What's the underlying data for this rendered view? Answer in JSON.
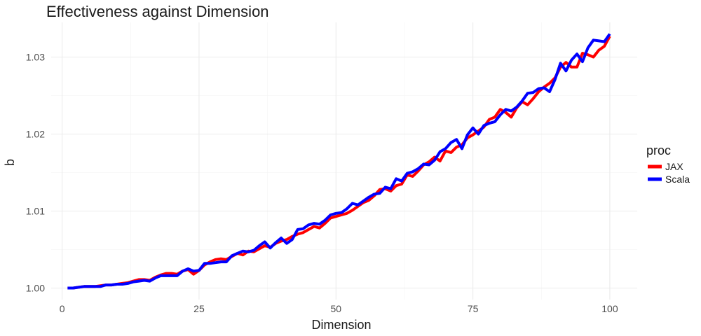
{
  "chart_data": {
    "type": "line",
    "title": "Effectiveness against Dimension",
    "xlabel": "Dimension",
    "ylabel": "b",
    "xlim": [
      -2,
      105
    ],
    "ylim": [
      0.9985,
      1.0345
    ],
    "x_ticks": [
      0,
      25,
      50,
      75,
      100
    ],
    "x_tick_labels": [
      "0",
      "25",
      "50",
      "75",
      "100"
    ],
    "y_ticks": [
      1.0,
      1.01,
      1.02,
      1.03
    ],
    "y_tick_labels": [
      "1.00",
      "1.01",
      "1.02",
      "1.03"
    ],
    "grid": true,
    "legend": {
      "title": "proc",
      "position": "right"
    },
    "x": [
      1,
      2,
      3,
      4,
      5,
      6,
      7,
      8,
      9,
      10,
      11,
      12,
      13,
      14,
      15,
      16,
      17,
      18,
      19,
      20,
      21,
      22,
      23,
      24,
      25,
      26,
      27,
      28,
      29,
      30,
      31,
      32,
      33,
      34,
      35,
      36,
      37,
      38,
      39,
      40,
      41,
      42,
      43,
      44,
      45,
      46,
      47,
      48,
      49,
      50,
      51,
      52,
      53,
      54,
      55,
      56,
      57,
      58,
      59,
      60,
      61,
      62,
      63,
      64,
      65,
      66,
      67,
      68,
      69,
      70,
      71,
      72,
      73,
      74,
      75,
      76,
      77,
      78,
      79,
      80,
      81,
      82,
      83,
      84,
      85,
      86,
      87,
      88,
      89,
      90,
      91,
      92,
      93,
      94,
      95,
      96,
      97,
      98,
      99,
      100
    ],
    "series": [
      {
        "name": "JAX",
        "color": "#ff0000",
        "values": [
          1.0,
          1.0,
          1.0001,
          1.0002,
          1.0002,
          1.0002,
          1.0003,
          1.0004,
          1.0004,
          1.0005,
          1.0006,
          1.0007,
          1.0009,
          1.0011,
          1.0011,
          1.001,
          1.0014,
          1.0017,
          1.0019,
          1.0019,
          1.0018,
          1.0022,
          1.0024,
          1.0018,
          1.0023,
          1.003,
          1.0034,
          1.0037,
          1.0038,
          1.0037,
          1.0041,
          1.0045,
          1.0043,
          1.0048,
          1.0047,
          1.0051,
          1.0055,
          1.0053,
          1.0058,
          1.0061,
          1.0063,
          1.0067,
          1.007,
          1.0072,
          1.0076,
          1.008,
          1.0078,
          1.0084,
          1.0091,
          1.0093,
          1.0095,
          1.0097,
          1.0101,
          1.0106,
          1.0111,
          1.0114,
          1.012,
          1.0128,
          1.0129,
          1.0126,
          1.0133,
          1.0135,
          1.0147,
          1.0145,
          1.0152,
          1.016,
          1.0164,
          1.017,
          1.0165,
          1.0178,
          1.0176,
          1.0183,
          1.0186,
          1.0195,
          1.0199,
          1.0204,
          1.0209,
          1.0219,
          1.0222,
          1.0232,
          1.0228,
          1.0222,
          1.0234,
          1.0242,
          1.0238,
          1.0246,
          1.0255,
          1.0261,
          1.0266,
          1.0273,
          1.0287,
          1.0293,
          1.0287,
          1.0287,
          1.0305,
          1.0303,
          1.03,
          1.0309,
          1.0314,
          1.0327
        ]
      },
      {
        "name": "Scala",
        "color": "#0000ff",
        "values": [
          1.0,
          1.0,
          1.0001,
          1.0002,
          1.0002,
          1.0002,
          1.0002,
          1.0004,
          1.0004,
          1.0005,
          1.0005,
          1.0006,
          1.0008,
          1.0009,
          1.001,
          1.0009,
          1.0013,
          1.0016,
          1.0016,
          1.0016,
          1.0016,
          1.0022,
          1.0025,
          1.0022,
          1.0023,
          1.0032,
          1.0032,
          1.0033,
          1.0034,
          1.0034,
          1.0042,
          1.0045,
          1.0048,
          1.0047,
          1.0049,
          1.0055,
          1.006,
          1.0052,
          1.0059,
          1.0065,
          1.0058,
          1.0063,
          1.0076,
          1.0077,
          1.0082,
          1.0084,
          1.0083,
          1.0088,
          1.0095,
          1.0097,
          1.0098,
          1.0103,
          1.011,
          1.0108,
          1.0113,
          1.0118,
          1.0122,
          1.0123,
          1.0131,
          1.0129,
          1.0142,
          1.0139,
          1.0149,
          1.0151,
          1.0155,
          1.0161,
          1.016,
          1.0166,
          1.0177,
          1.0181,
          1.0189,
          1.0193,
          1.0181,
          1.0199,
          1.0208,
          1.02,
          1.0211,
          1.0214,
          1.0216,
          1.0225,
          1.0232,
          1.023,
          1.0235,
          1.0243,
          1.0253,
          1.0254,
          1.0259,
          1.026,
          1.0255,
          1.0271,
          1.0292,
          1.0282,
          1.0296,
          1.0304,
          1.0294,
          1.0312,
          1.0322,
          1.0321,
          1.032,
          1.033
        ]
      }
    ]
  }
}
